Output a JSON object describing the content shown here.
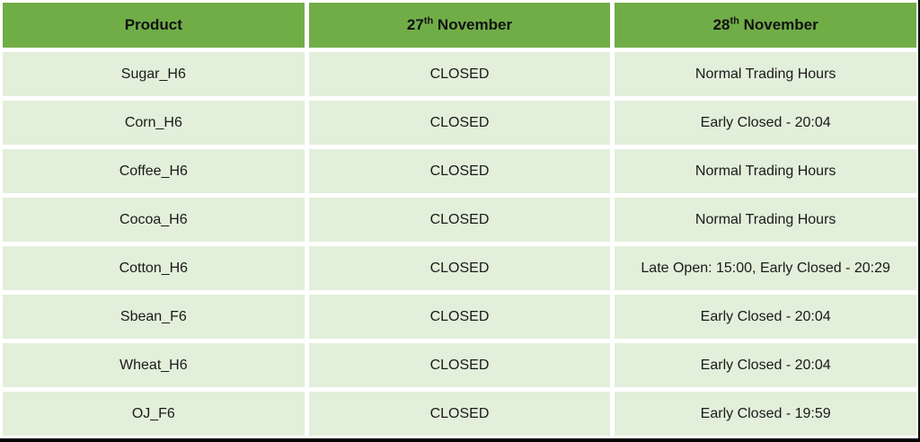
{
  "colors": {
    "header_bg": "#70AD47",
    "row_bg": "#E2EFDA",
    "text": "#1A1A1A",
    "gap": "#FFFFFF",
    "edge": "#000000"
  },
  "table": {
    "headers": {
      "product": {
        "text": "Product"
      },
      "nov27": {
        "prefix": "27",
        "sup": "th",
        "suffix": " November"
      },
      "nov28": {
        "prefix": "28",
        "sup": "th",
        "suffix": " November"
      }
    },
    "rows": [
      {
        "product": "Sugar_H6",
        "nov27": "CLOSED",
        "nov28": "Normal Trading Hours"
      },
      {
        "product": "Corn_H6",
        "nov27": "CLOSED",
        "nov28": "Early Closed - 20:04"
      },
      {
        "product": "Coffee_H6",
        "nov27": "CLOSED",
        "nov28": "Normal Trading Hours"
      },
      {
        "product": "Cocoa_H6",
        "nov27": "CLOSED",
        "nov28": "Normal Trading Hours"
      },
      {
        "product": "Cotton_H6",
        "nov27": "CLOSED",
        "nov28": "Late Open: 15:00, Early Closed - 20:29"
      },
      {
        "product": "Sbean_F6",
        "nov27": "CLOSED",
        "nov28": "Early Closed - 20:04"
      },
      {
        "product": "Wheat_H6",
        "nov27": "CLOSED",
        "nov28": "Early Closed - 20:04"
      },
      {
        "product": "OJ_F6",
        "nov27": "CLOSED",
        "nov28": "Early Closed - 19:59"
      }
    ]
  }
}
